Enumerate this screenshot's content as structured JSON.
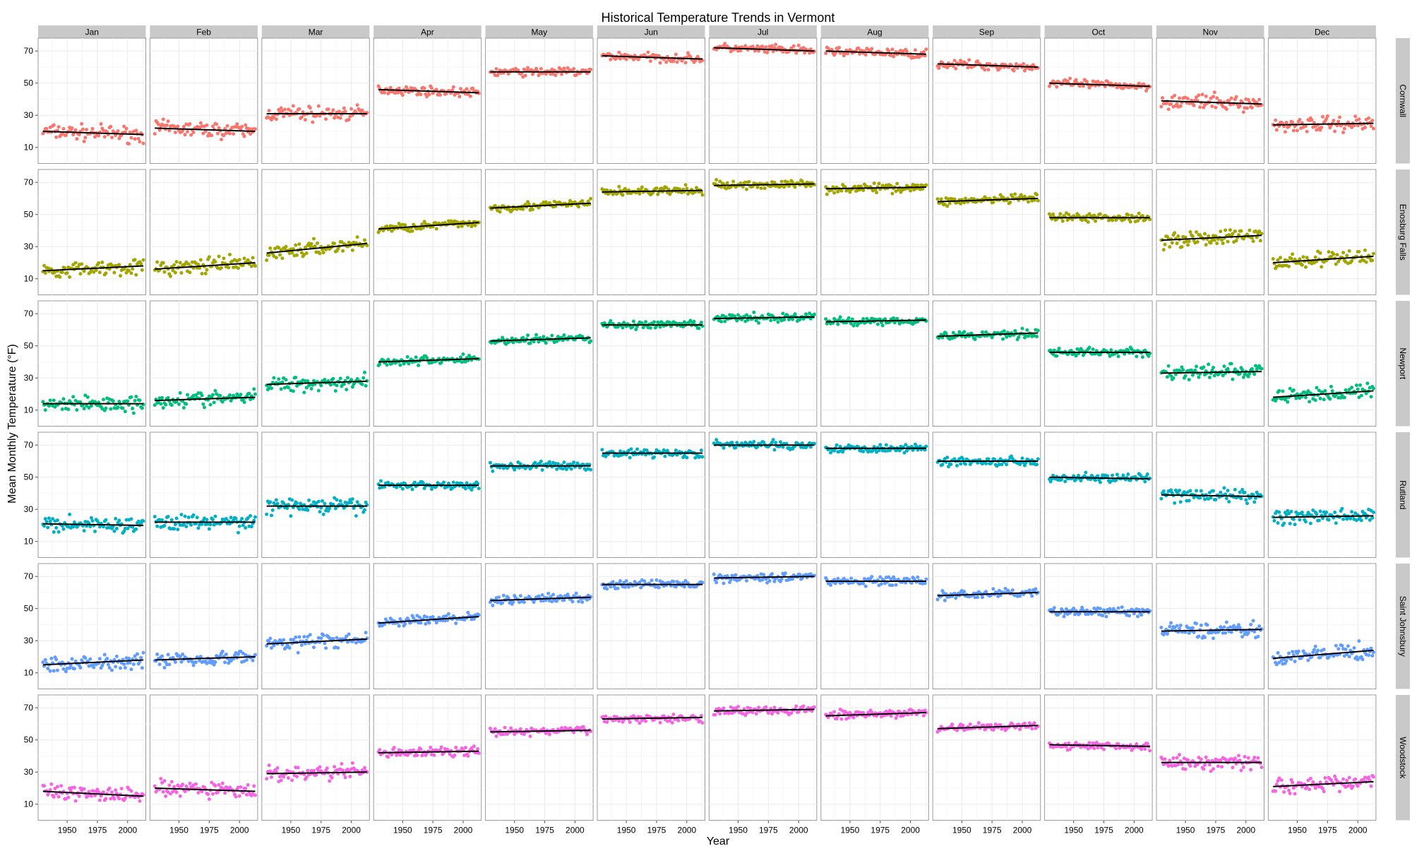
{
  "chart_data": {
    "type": "scatter",
    "title": "Historical Temperature Trends in Vermont",
    "xlabel": "Year",
    "ylabel": "Mean Monthly Temperature (°F)",
    "xlim": [
      1926,
      2015
    ],
    "ylim": [
      0,
      78
    ],
    "x_ticks": [
      1950,
      1975,
      2000
    ],
    "y_ticks": [
      10,
      30,
      50,
      70
    ],
    "grid": true,
    "legend": "none",
    "months": [
      "Jan",
      "Feb",
      "Mar",
      "Apr",
      "May",
      "Jun",
      "Jul",
      "Aug",
      "Sep",
      "Oct",
      "Nov",
      "Dec"
    ],
    "stations": [
      {
        "name": "Cornwall",
        "color": "#f8766d",
        "trend_start": [
          20,
          22,
          31,
          46,
          57,
          67,
          72,
          70,
          62,
          50,
          39,
          24
        ],
        "trend_end": [
          18,
          20,
          31,
          44,
          57,
          65,
          70,
          68,
          60,
          48,
          37,
          25
        ]
      },
      {
        "name": "Enosburg Falls",
        "color": "#a3a500",
        "trend_start": [
          15,
          16,
          26,
          41,
          54,
          64,
          68,
          66,
          58,
          48,
          34,
          20
        ],
        "trend_end": [
          18,
          20,
          32,
          45,
          57,
          65,
          69,
          67,
          60,
          48,
          37,
          24
        ]
      },
      {
        "name": "Newport",
        "color": "#00bf7d",
        "trend_start": [
          14,
          16,
          26,
          40,
          53,
          63,
          67,
          65,
          56,
          46,
          33,
          18
        ],
        "trend_end": [
          14,
          18,
          28,
          42,
          55,
          63,
          68,
          66,
          58,
          46,
          34,
          22
        ]
      },
      {
        "name": "Rutland",
        "color": "#00b0c4",
        "trend_start": [
          21,
          22,
          32,
          45,
          57,
          65,
          70,
          68,
          60,
          50,
          39,
          25
        ],
        "trend_end": [
          20,
          22,
          32,
          45,
          57,
          65,
          70,
          68,
          60,
          49,
          38,
          26
        ]
      },
      {
        "name": "Saint Johnsbury",
        "color": "#619cff",
        "trend_start": [
          15,
          18,
          28,
          41,
          55,
          65,
          69,
          67,
          58,
          48,
          36,
          19
        ],
        "trend_end": [
          18,
          20,
          31,
          45,
          57,
          65,
          70,
          67,
          60,
          48,
          37,
          24
        ]
      },
      {
        "name": "Woodstock",
        "color": "#f564e3",
        "trend_start": [
          18,
          20,
          29,
          42,
          55,
          63,
          68,
          65,
          57,
          47,
          36,
          21
        ],
        "trend_end": [
          15,
          18,
          30,
          43,
          56,
          64,
          69,
          67,
          59,
          46,
          36,
          24
        ]
      }
    ],
    "year_range": [
      1930,
      2013
    ],
    "scatter_spread_F": 5
  }
}
